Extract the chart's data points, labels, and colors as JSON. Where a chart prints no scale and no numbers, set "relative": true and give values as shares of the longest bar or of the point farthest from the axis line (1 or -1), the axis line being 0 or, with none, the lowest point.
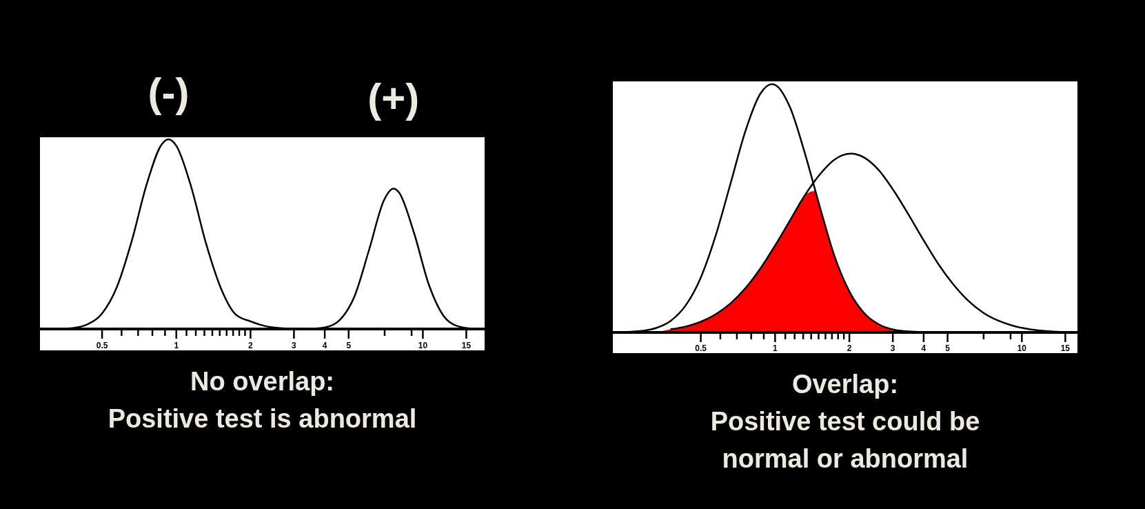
{
  "chart_data": [
    {
      "type": "line",
      "title": "No overlap:\nPositive test is abnormal",
      "relative": true,
      "log": "x",
      "tick_labels": "x",
      "xlim": [
        0.28,
        17.8
      ],
      "xticks": [
        0.5,
        {
          "value": 0.6,
          "label": null
        },
        {
          "value": 0.7,
          "label": null
        },
        {
          "value": 0.8,
          "label": null
        },
        {
          "value": 0.9,
          "label": null
        },
        1,
        {
          "value": 1.1,
          "label": null
        },
        {
          "value": 1.2,
          "label": null
        },
        {
          "value": 1.3,
          "label": null
        },
        {
          "value": 1.4,
          "label": null
        },
        {
          "value": 1.5,
          "label": null
        },
        {
          "value": 1.6,
          "label": null
        },
        {
          "value": 1.7,
          "label": null
        },
        {
          "value": 1.8,
          "label": null
        },
        {
          "value": 1.9,
          "label": null
        },
        2,
        3,
        4,
        5,
        {
          "value": 7,
          "label": null
        },
        {
          "value": 9,
          "label": null
        },
        10,
        15
      ],
      "annotations": [
        {
          "text": "(-)",
          "x": 0.93,
          "y": 1
        },
        {
          "text": "(+)",
          "x": 7.6,
          "y": 0.74
        }
      ],
      "series": [
        {
          "color": "#000000",
          "x": [
            0.287,
            0.33,
            0.379,
            0.435,
            0.5,
            0.574,
            0.66,
            0.758,
            0.871,
            0.93,
            1,
            1.15,
            1.32,
            1.52,
            1.74,
            2,
            2.3,
            2.64,
            3.03,
            3.48
          ],
          "values": [
            0,
            0.001,
            0.005,
            0.024,
            0.082,
            0.221,
            0.465,
            0.762,
            0.972,
            1,
            0.966,
            0.748,
            0.451,
            0.212,
            0.077,
            0.04,
            0.015,
            0.005,
            0.001,
            0
          ]
        },
        {
          "color": "#000000",
          "x": [
            3.03,
            3.48,
            4,
            4.59,
            5.28,
            6.06,
            6.96,
            7.6,
            8,
            9.19,
            10.6,
            12.1,
            13.9,
            16
          ],
          "values": [
            0,
            0.001,
            0.008,
            0.046,
            0.172,
            0.42,
            0.68,
            0.74,
            0.72,
            0.51,
            0.23,
            0.071,
            0.014,
            0.002
          ]
        }
      ]
    },
    {
      "type": "line",
      "title": "Overlap:\nPositive test could be\nnormal or abnormal",
      "relative": true,
      "log": "x",
      "tick_labels": "x",
      "xlim": [
        0.22,
        16.8
      ],
      "xticks": [
        0.5,
        {
          "value": 0.6,
          "label": null
        },
        {
          "value": 0.7,
          "label": null
        },
        {
          "value": 0.8,
          "label": null
        },
        {
          "value": 0.9,
          "label": null
        },
        1,
        {
          "value": 1.1,
          "label": null
        },
        {
          "value": 1.2,
          "label": null
        },
        {
          "value": 1.3,
          "label": null
        },
        {
          "value": 1.4,
          "label": null
        },
        {
          "value": 1.5,
          "label": null
        },
        {
          "value": 1.6,
          "label": null
        },
        {
          "value": 1.7,
          "label": null
        },
        {
          "value": 1.8,
          "label": null
        },
        {
          "value": 1.9,
          "label": null
        },
        2,
        3,
        4,
        5,
        {
          "value": 7,
          "label": null
        },
        {
          "value": 9,
          "label": null
        },
        10,
        15
      ],
      "series": [
        {
          "type": "area",
          "color": "#ff0000",
          "x": [
            0.33,
            0.379,
            0.435,
            0.5,
            0.574,
            0.66,
            0.758,
            0.871,
            1,
            1.15,
            1.32,
            1.454,
            1.52,
            1.74,
            2,
            2.3,
            2.64,
            3.03,
            3.48,
            4
          ],
          "values": [
            0,
            0.013,
            0.024,
            0.043,
            0.073,
            0.117,
            0.178,
            0.257,
            0.35,
            0.452,
            0.552,
            0.57,
            0.504,
            0.308,
            0.165,
            0.077,
            0.032,
            0.011,
            0.004,
            0.001
          ]
        },
        {
          "color": "#000000",
          "x": [
            0.25,
            0.287,
            0.33,
            0.379,
            0.435,
            0.5,
            0.574,
            0.66,
            0.758,
            0.871,
            0.97,
            1,
            1.15,
            1.32,
            1.52,
            1.74,
            2,
            2.3,
            2.64,
            3.03,
            3.48,
            4
          ],
          "values": [
            0.002,
            0.006,
            0.018,
            0.048,
            0.11,
            0.221,
            0.389,
            0.6,
            0.811,
            0.961,
            1,
            0.997,
            0.906,
            0.722,
            0.504,
            0.308,
            0.165,
            0.077,
            0.032,
            0.011,
            0.004,
            0.001
          ]
        },
        {
          "color": "#000000",
          "x": [
            0.379,
            0.435,
            0.5,
            0.574,
            0.66,
            0.758,
            0.871,
            1,
            1.15,
            1.32,
            1.52,
            1.74,
            2.03,
            2.3,
            2.64,
            3.03,
            3.48,
            4,
            4.59,
            5.28,
            6.06,
            6.96,
            8,
            9.19,
            10.6,
            12.1,
            13.9,
            16
          ],
          "values": [
            0.013,
            0.024,
            0.043,
            0.073,
            0.117,
            0.178,
            0.257,
            0.35,
            0.452,
            0.552,
            0.637,
            0.696,
            0.72,
            0.704,
            0.652,
            0.57,
            0.473,
            0.371,
            0.275,
            0.193,
            0.128,
            0.08,
            0.048,
            0.027,
            0.014,
            0.007,
            0.003,
            0.001
          ]
        }
      ]
    }
  ]
}
